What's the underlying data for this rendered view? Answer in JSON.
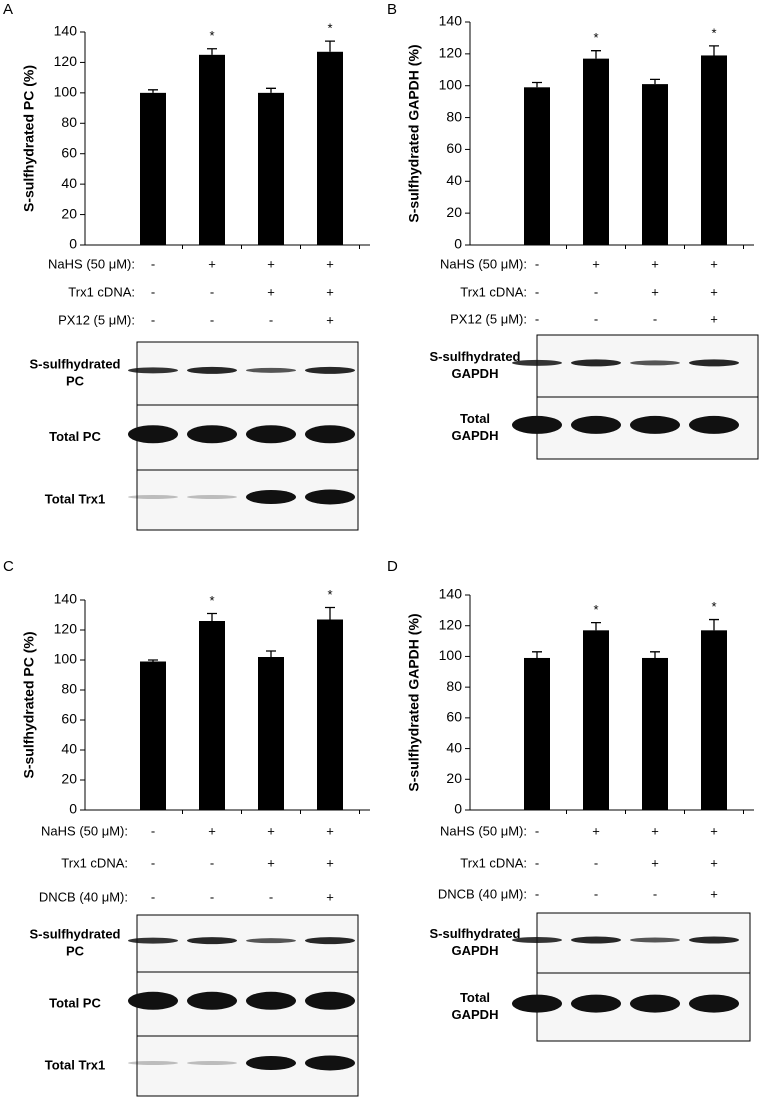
{
  "chart_data": [
    {
      "type": "bar",
      "panel": "A",
      "ylabel": "S-sulfhydrated PC (%)",
      "color": "#000000",
      "categories": [
        null,
        null,
        null,
        null
      ],
      "values": [
        100,
        125,
        100,
        127
      ],
      "errors": [
        2,
        4,
        3,
        7
      ],
      "annotations": [
        null,
        "*",
        null,
        "*"
      ],
      "ylim": [
        0,
        140
      ],
      "yticks": [
        0,
        20,
        40,
        60,
        80,
        100,
        120,
        140
      ],
      "conditions": [
        {
          "label": "NaHS (50 μM):",
          "signs": [
            "-",
            "+",
            "+",
            "+"
          ]
        },
        {
          "label": "Trx1 cDNA:",
          "signs": [
            "-",
            "-",
            "+",
            "+"
          ]
        },
        {
          "label": "PX12 (5 μM):",
          "signs": [
            "-",
            "-",
            "-",
            "+"
          ]
        }
      ],
      "blots": [
        [
          "S-sulfhydrated",
          "PC"
        ],
        [
          "Total PC"
        ],
        [
          "Total Trx1"
        ]
      ]
    },
    {
      "type": "bar",
      "panel": "B",
      "ylabel": "S-sulfhydrated GAPDH (%)",
      "color": "#000000",
      "categories": [
        null,
        null,
        null,
        null
      ],
      "values": [
        99,
        117,
        101,
        119
      ],
      "errors": [
        3,
        5,
        3,
        6
      ],
      "annotations": [
        null,
        "*",
        null,
        "*"
      ],
      "ylim": [
        0,
        140
      ],
      "yticks": [
        0,
        20,
        40,
        60,
        80,
        100,
        120,
        140
      ],
      "conditions": [
        {
          "label": "NaHS (50 μM):",
          "signs": [
            "-",
            "+",
            "+",
            "+"
          ]
        },
        {
          "label": "Trx1 cDNA:",
          "signs": [
            "-",
            "-",
            "+",
            "+"
          ]
        },
        {
          "label": "PX12 (5 μM):",
          "signs": [
            "-",
            "-",
            "-",
            "+"
          ]
        }
      ],
      "blots": [
        [
          "S-sulfhydrated",
          "GAPDH"
        ],
        [
          "Total",
          "GAPDH"
        ]
      ]
    },
    {
      "type": "bar",
      "panel": "C",
      "ylabel": "S-sulfhydrated PC (%)",
      "color": "#000000",
      "categories": [
        null,
        null,
        null,
        null
      ],
      "values": [
        99,
        126,
        102,
        127
      ],
      "errors": [
        1,
        5,
        4,
        8
      ],
      "annotations": [
        null,
        "*",
        null,
        "*"
      ],
      "ylim": [
        0,
        140
      ],
      "yticks": [
        0,
        20,
        40,
        60,
        80,
        100,
        120,
        140
      ],
      "conditions": [
        {
          "label": "NaHS (50 μM):",
          "signs": [
            "-",
            "+",
            "+",
            "+"
          ]
        },
        {
          "label": "Trx1 cDNA:",
          "signs": [
            "-",
            "-",
            "+",
            "+"
          ]
        },
        {
          "label": "DNCB (40 μM):",
          "signs": [
            "-",
            "-",
            "-",
            "+"
          ]
        }
      ],
      "blots": [
        [
          "S-sulfhydrated",
          "PC"
        ],
        [
          "Total PC"
        ],
        [
          "Total Trx1"
        ]
      ]
    },
    {
      "type": "bar",
      "panel": "D",
      "ylabel": "S-sulfhydrated GAPDH (%)",
      "color": "#000000",
      "categories": [
        null,
        null,
        null,
        null
      ],
      "values": [
        99,
        117,
        99,
        117
      ],
      "errors": [
        4,
        5,
        4,
        7
      ],
      "annotations": [
        null,
        "*",
        null,
        "*"
      ],
      "ylim": [
        0,
        140
      ],
      "yticks": [
        0,
        20,
        40,
        60,
        80,
        100,
        120,
        140
      ],
      "conditions": [
        {
          "label": "NaHS (50 μM):",
          "signs": [
            "-",
            "+",
            "+",
            "+"
          ]
        },
        {
          "label": "Trx1 cDNA:",
          "signs": [
            "-",
            "-",
            "+",
            "+"
          ]
        },
        {
          "label": "DNCB (40 μM):",
          "signs": [
            "-",
            "-",
            "-",
            "+"
          ]
        }
      ],
      "blots": [
        [
          "S-sulfhydrated",
          "GAPDH"
        ],
        [
          "Total",
          "GAPDH"
        ]
      ]
    }
  ]
}
